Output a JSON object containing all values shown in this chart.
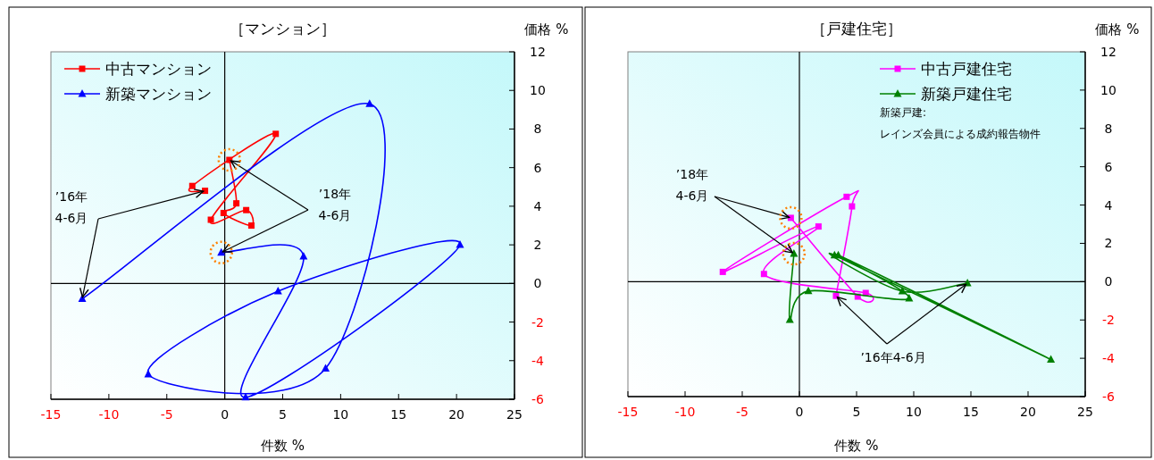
{
  "chart_data": [
    {
      "type": "line",
      "title": "［マンション］",
      "xlabel": "件数 %",
      "ylabel": "価格 %",
      "xlim": [
        -15,
        25
      ],
      "ylim": [
        -6,
        12
      ],
      "xticks": [
        -15,
        -10,
        -5,
        0,
        5,
        10,
        15,
        20,
        25
      ],
      "yticks": [
        -6,
        -4,
        -2,
        0,
        2,
        4,
        6,
        8,
        10,
        12
      ],
      "legend": "top left",
      "series": [
        {
          "name": "中古マンション",
          "color": "#ff0000",
          "marker": "square",
          "x": [
            -1.7,
            -2.8,
            4.4,
            -1.2,
            1.85,
            2.3,
            -0.1,
            1.0,
            0.4
          ],
          "values": [
            4.8,
            5.05,
            7.75,
            3.3,
            3.8,
            3.0,
            3.65,
            4.15,
            6.4
          ]
        },
        {
          "name": "新築マンション",
          "color": "#0000ff",
          "marker": "triangle",
          "x": [
            -12.3,
            12.5,
            8.7,
            -6.6,
            4.6,
            20.3,
            1.8,
            6.8,
            -0.3
          ],
          "values": [
            -0.8,
            9.3,
            -4.4,
            -4.7,
            -0.4,
            2.0,
            -5.9,
            1.4,
            1.6
          ]
        }
      ],
      "annotations": [
        {
          "text": "’16年\n4-6月",
          "x": -12.3,
          "y": -0.8
        },
        {
          "text": "’18年\n4-6月",
          "x": -0.3,
          "y": 1.6
        }
      ]
    },
    {
      "type": "line",
      "title": "［戸建住宅］",
      "xlabel": "件数 %",
      "ylabel": "価格 %",
      "xlim": [
        -15,
        25
      ],
      "ylim": [
        -6,
        12
      ],
      "xticks": [
        -15,
        -10,
        -5,
        0,
        5,
        10,
        15,
        20,
        25
      ],
      "yticks": [
        -6,
        -4,
        -2,
        0,
        2,
        4,
        6,
        8,
        10,
        12
      ],
      "legend": "top right",
      "series": [
        {
          "name": "中古戸建住宅",
          "color": "#ff00ff",
          "marker": "square",
          "x": [
            3.2,
            4.6,
            4.13,
            -6.7,
            1.67,
            -3.1,
            5.8,
            5.1,
            -0.75
          ],
          "values": [
            -0.74,
            3.93,
            4.43,
            0.51,
            2.88,
            0.4,
            -0.59,
            -0.78,
            3.33
          ]
        },
        {
          "name": "新築戸建住宅",
          "color": "#008000",
          "marker": "triangle",
          "x": [
            14.7,
            9.0,
            3.07,
            22.0,
            3.4,
            9.6,
            0.78,
            -0.84,
            -0.48
          ],
          "values": [
            -0.08,
            -0.5,
            1.38,
            -4.07,
            1.38,
            -0.87,
            -0.49,
            -1.99,
            1.46
          ]
        }
      ],
      "annotations": [
        "新築戸建:\nレインズ会員による成約報告物件",
        {
          "text": "’18年\n4-6月",
          "x": -0.75,
          "y": 3.33
        },
        {
          "text": "’16年4-6月",
          "x": 14.7,
          "y": -0.08
        }
      ]
    }
  ]
}
